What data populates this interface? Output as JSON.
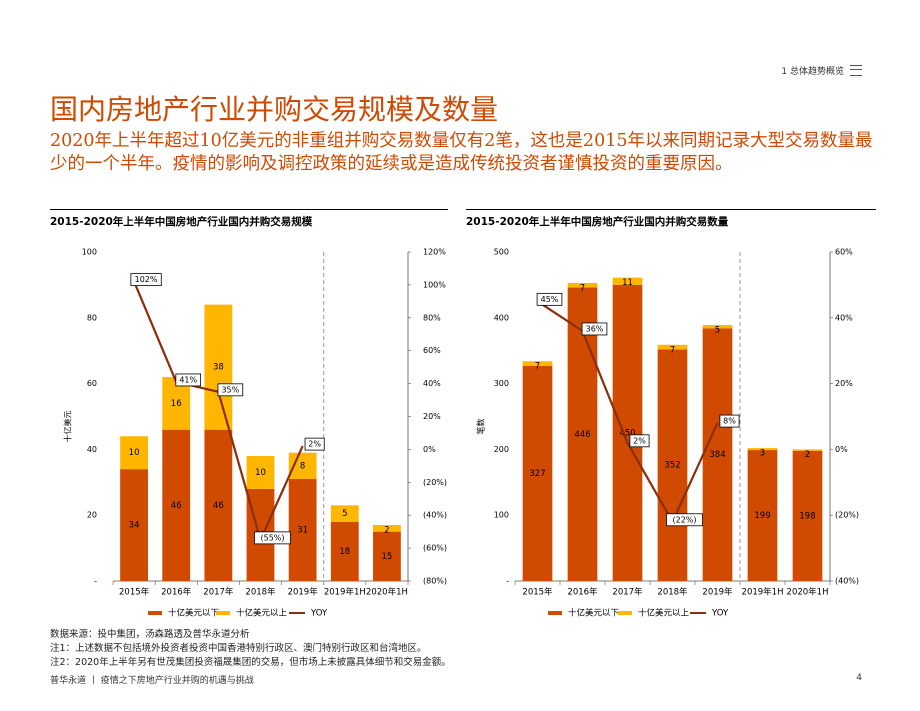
{
  "header": {
    "section_label": "1 总体趋势概览"
  },
  "page": {
    "title": "国内房地产行业并购交易规模及数量",
    "subtitle": "2020年上半年超过10亿美元的非重组并购交易数量仅有2笔，这也是2015年以来同期记录大型交易数量最少的一个半年。疫情的影响及调控政策的延续或是造成传统投资者谨慎投资的重要原因。"
  },
  "colors": {
    "accent": "#d04a02",
    "under_10b": "#d04a02",
    "over_10b": "#ffb600",
    "yoy": "#8b2e0b"
  },
  "chart_data": [
    {
      "type": "bar",
      "stacked": true,
      "title": "2015-2020年上半年中国房地产行业国内并购交易规模",
      "ylabel": "十亿美元",
      "categories": [
        "2015年",
        "2016年",
        "2017年",
        "2018年",
        "2019年",
        "2019年1H",
        "2020年1H"
      ],
      "y_ticks": [
        "-",
        "20",
        "40",
        "60",
        "80",
        "100"
      ],
      "ylim": [
        0,
        100
      ],
      "y2_ticks": [
        "(80%)",
        "(60%)",
        "(40%)",
        "(20%)",
        "0%",
        "20%",
        "40%",
        "60%",
        "80%",
        "100%",
        "120%"
      ],
      "y2lim": [
        -80,
        120
      ],
      "series": [
        {
          "name": "十亿美元以下",
          "values": [
            34,
            46,
            46,
            28,
            31,
            18,
            15
          ]
        },
        {
          "name": "十亿美元以上",
          "values": [
            10,
            16,
            38,
            10,
            8,
            5,
            2
          ]
        }
      ],
      "line": {
        "name": "YOY",
        "values": [
          102,
          41,
          35,
          -55,
          2
        ],
        "labels": [
          "102%",
          "41%",
          "35%",
          "(55%)",
          "2%"
        ]
      },
      "divider_after_index": 4,
      "legend": "bottom"
    },
    {
      "type": "bar",
      "stacked": true,
      "title": "2015-2020年上半年中国房地产行业国内并购交易数量",
      "ylabel": "笔数",
      "categories": [
        "2015年",
        "2016年",
        "2017年",
        "2018年",
        "2019年",
        "2019年1H",
        "2020年1H"
      ],
      "y_ticks": [
        "-",
        "100",
        "200",
        "300",
        "400",
        "500"
      ],
      "ylim": [
        0,
        500
      ],
      "y2_ticks": [
        "(40%)",
        "(20%)",
        "0%",
        "20%",
        "40%",
        "60%"
      ],
      "y2lim": [
        -40,
        60
      ],
      "series": [
        {
          "name": "十亿美元以下",
          "values": [
            327,
            446,
            450,
            352,
            384,
            199,
            198
          ]
        },
        {
          "name": "十亿美元以上",
          "values": [
            7,
            7,
            11,
            7,
            5,
            3,
            2
          ]
        }
      ],
      "line": {
        "name": "YOY",
        "values": [
          45,
          36,
          2,
          -22,
          8
        ],
        "labels": [
          "45%",
          "36%",
          "2%",
          "(22%)",
          "8%"
        ]
      },
      "divider_after_index": 4,
      "legend": "bottom"
    }
  ],
  "notes": {
    "source": "数据来源：投中集团，汤森路透及普华永道分析",
    "note1": "注1：上述数据不包括境外投资者投资中国香港特别行政区、澳门特别行政区和台湾地区。",
    "note2": "注2：2020年上半年另有世茂集团投资福晟集团的交易，但市场上未披露具体细节和交易金额。"
  },
  "footer": {
    "left": "普华永道 丨 疫情之下房地产行业并购的机遇与挑战",
    "page_number": "4"
  }
}
